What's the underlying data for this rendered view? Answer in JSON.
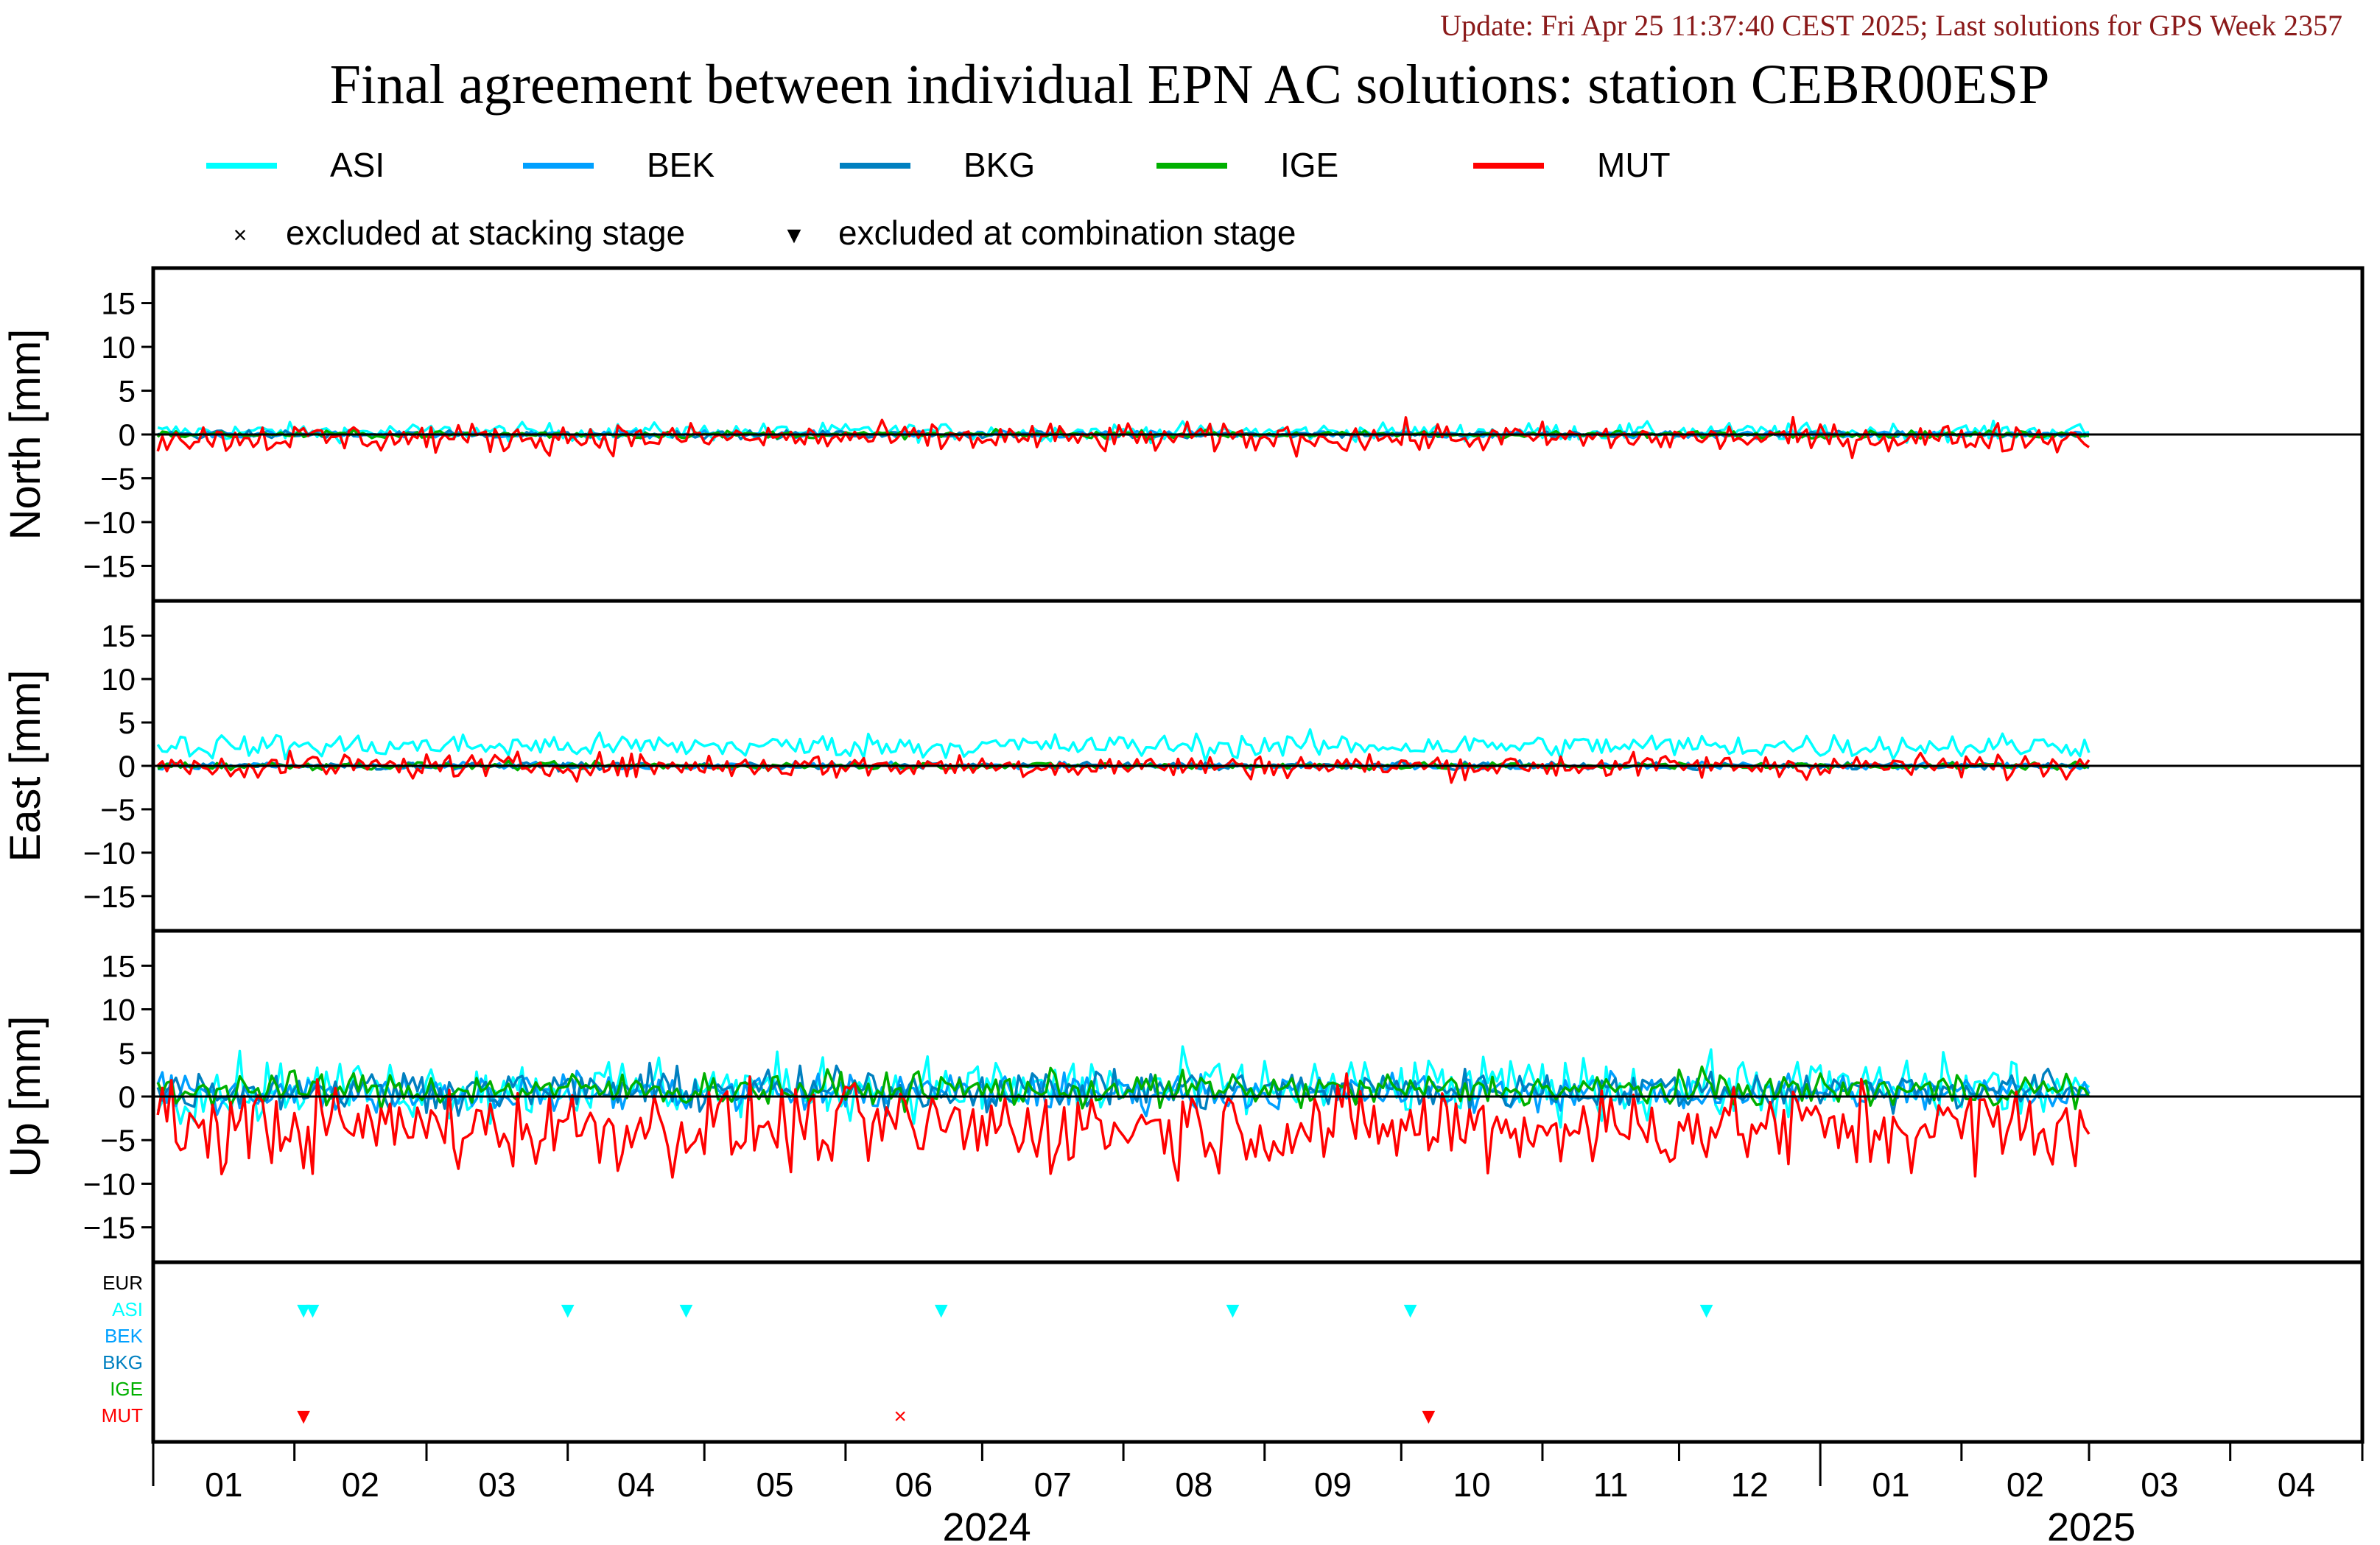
{
  "header": {
    "update_line": "Update: Fri Apr 25 11:37:40 CEST 2025; Last solutions for GPS Week 2357",
    "update_color": "#8b1a1a",
    "title": "Final agreement between individual EPN AC solutions: station CEBR00ESP"
  },
  "legend": {
    "series": [
      {
        "name": "ASI",
        "color": "#00ffff"
      },
      {
        "name": "BEK",
        "color": "#00a0ff"
      },
      {
        "name": "BKG",
        "color": "#0080c0"
      },
      {
        "name": "IGE",
        "color": "#00b000"
      },
      {
        "name": "MUT",
        "color": "#ff0000"
      }
    ],
    "markers": [
      {
        "symbol": "×",
        "label": "excluded at stacking stage"
      },
      {
        "symbol": "▼",
        "label": "excluded at combination stage"
      }
    ]
  },
  "chart_data": {
    "type": "line",
    "x_unit": "month",
    "xlim": [
      "2024-01-01",
      "2025-04-30"
    ],
    "month_ticks": [
      "01",
      "02",
      "03",
      "04",
      "05",
      "06",
      "07",
      "08",
      "09",
      "10",
      "11",
      "12",
      "01",
      "02",
      "03",
      "04"
    ],
    "year_labels": [
      "2024",
      "2025"
    ],
    "grid": false,
    "legend_position": "top",
    "panels": [
      {
        "ylabel": "North [mm]",
        "ylim": [
          -19,
          19
        ],
        "yticks": [
          15,
          10,
          5,
          0,
          -5,
          -10,
          -15
        ],
        "series": [
          {
            "name": "ASI",
            "color": "#00ffff",
            "mean": 0.3,
            "amplitude": 0.7,
            "pattern": "noise"
          },
          {
            "name": "BEK",
            "color": "#00a0ff",
            "mean": 0.0,
            "amplitude": 0.3,
            "pattern": "noise"
          },
          {
            "name": "BKG",
            "color": "#0080c0",
            "mean": 0.0,
            "amplitude": 0.3,
            "pattern": "noise"
          },
          {
            "name": "IGE",
            "color": "#00b000",
            "mean": 0.0,
            "amplitude": 0.3,
            "pattern": "noise"
          },
          {
            "name": "MUT",
            "color": "#ff0000",
            "mean": -0.4,
            "amplitude": 1.2,
            "pattern": "noise"
          }
        ]
      },
      {
        "ylabel": "East [mm]",
        "ylim": [
          -19,
          19
        ],
        "yticks": [
          15,
          10,
          5,
          0,
          -5,
          -10,
          -15
        ],
        "series": [
          {
            "name": "ASI",
            "color": "#00ffff",
            "mean": 2.3,
            "amplitude": 1.0,
            "pattern": "noise"
          },
          {
            "name": "BEK",
            "color": "#00a0ff",
            "mean": 0.0,
            "amplitude": 0.3,
            "pattern": "noise"
          },
          {
            "name": "BKG",
            "color": "#0080c0",
            "mean": 0.0,
            "amplitude": 0.3,
            "pattern": "noise"
          },
          {
            "name": "IGE",
            "color": "#00b000",
            "mean": 0.0,
            "amplitude": 0.3,
            "pattern": "noise"
          },
          {
            "name": "MUT",
            "color": "#ff0000",
            "mean": 0.0,
            "amplitude": 1.0,
            "pattern": "noise"
          }
        ]
      },
      {
        "ylabel": "Up [mm]",
        "ylim": [
          -19,
          19
        ],
        "yticks": [
          15,
          10,
          5,
          0,
          -5,
          -10,
          -15
        ],
        "series": [
          {
            "name": "ASI",
            "color": "#00ffff",
            "mean": 1.0,
            "amplitude": 2.5,
            "pattern": "noise"
          },
          {
            "name": "BEK",
            "color": "#00a0ff",
            "mean": 0.5,
            "amplitude": 1.5,
            "pattern": "noise"
          },
          {
            "name": "BKG",
            "color": "#0080c0",
            "mean": 0.8,
            "amplitude": 1.6,
            "pattern": "noise"
          },
          {
            "name": "IGE",
            "color": "#00b000",
            "mean": 0.8,
            "amplitude": 1.4,
            "pattern": "noise"
          },
          {
            "name": "MUT",
            "color": "#ff0000",
            "mean": -3.5,
            "amplitude": 3.5,
            "pattern": "noise"
          }
        ]
      }
    ],
    "exclusion_panel": {
      "rows": [
        {
          "name": "EUR",
          "color": "#000000"
        },
        {
          "name": "ASI",
          "color": "#00ffff"
        },
        {
          "name": "BEK",
          "color": "#00a0ff"
        },
        {
          "name": "BKG",
          "color": "#0080c0"
        },
        {
          "name": "IGE",
          "color": "#00b000"
        },
        {
          "name": "MUT",
          "color": "#ff0000"
        }
      ],
      "markers": [
        {
          "row": "ASI",
          "date": "2024-02-03",
          "symbol": "▼"
        },
        {
          "row": "ASI",
          "date": "2024-02-05",
          "symbol": "▼"
        },
        {
          "row": "ASI",
          "date": "2024-04-01",
          "symbol": "▼"
        },
        {
          "row": "ASI",
          "date": "2024-04-27",
          "symbol": "▼"
        },
        {
          "row": "ASI",
          "date": "2024-06-22",
          "symbol": "▼"
        },
        {
          "row": "ASI",
          "date": "2024-08-25",
          "symbol": "▼"
        },
        {
          "row": "ASI",
          "date": "2024-10-03",
          "symbol": "▼"
        },
        {
          "row": "ASI",
          "date": "2024-12-07",
          "symbol": "▼"
        },
        {
          "row": "MUT",
          "date": "2024-02-03",
          "symbol": "▼"
        },
        {
          "row": "MUT",
          "date": "2024-06-13",
          "symbol": "×"
        },
        {
          "row": "MUT",
          "date": "2024-10-07",
          "symbol": "▼"
        }
      ]
    },
    "data_end": "2025-03-01"
  }
}
